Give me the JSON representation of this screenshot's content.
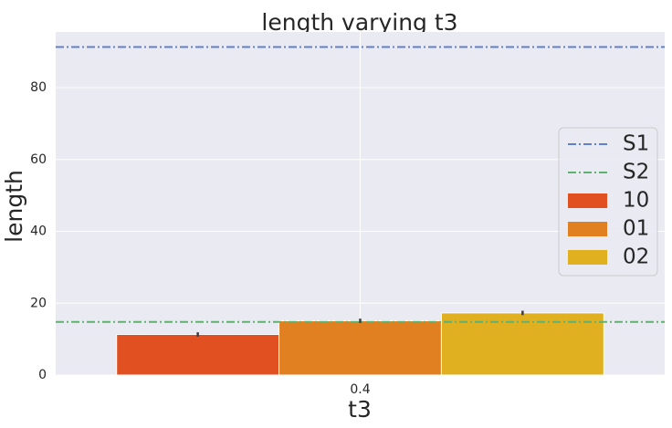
{
  "chart_data": {
    "type": "bar",
    "title": "length varying t3",
    "xlabel": "t3",
    "ylabel": "length",
    "categories": [
      "0.4"
    ],
    "series": [
      {
        "name": "10",
        "values": [
          11.3
        ],
        "error": [
          0.6
        ],
        "color": "#e05020"
      },
      {
        "name": "01",
        "values": [
          15.1
        ],
        "error": [
          0.6
        ],
        "color": "#e08020"
      },
      {
        "name": "02",
        "values": [
          17.3
        ],
        "error": [
          0.6
        ],
        "color": "#e0b020"
      }
    ],
    "reference_lines": [
      {
        "name": "S1",
        "value": 91.3,
        "color": "#6080c8",
        "style": "dashdot"
      },
      {
        "name": "S2",
        "value": 14.8,
        "color": "#60b070",
        "style": "dashdot"
      }
    ],
    "yticks": [
      0,
      20,
      40,
      60,
      80
    ],
    "ylim": [
      0,
      95.5
    ],
    "grid": true,
    "legend_position": "center-right",
    "background_color": "#eaeaf2"
  }
}
